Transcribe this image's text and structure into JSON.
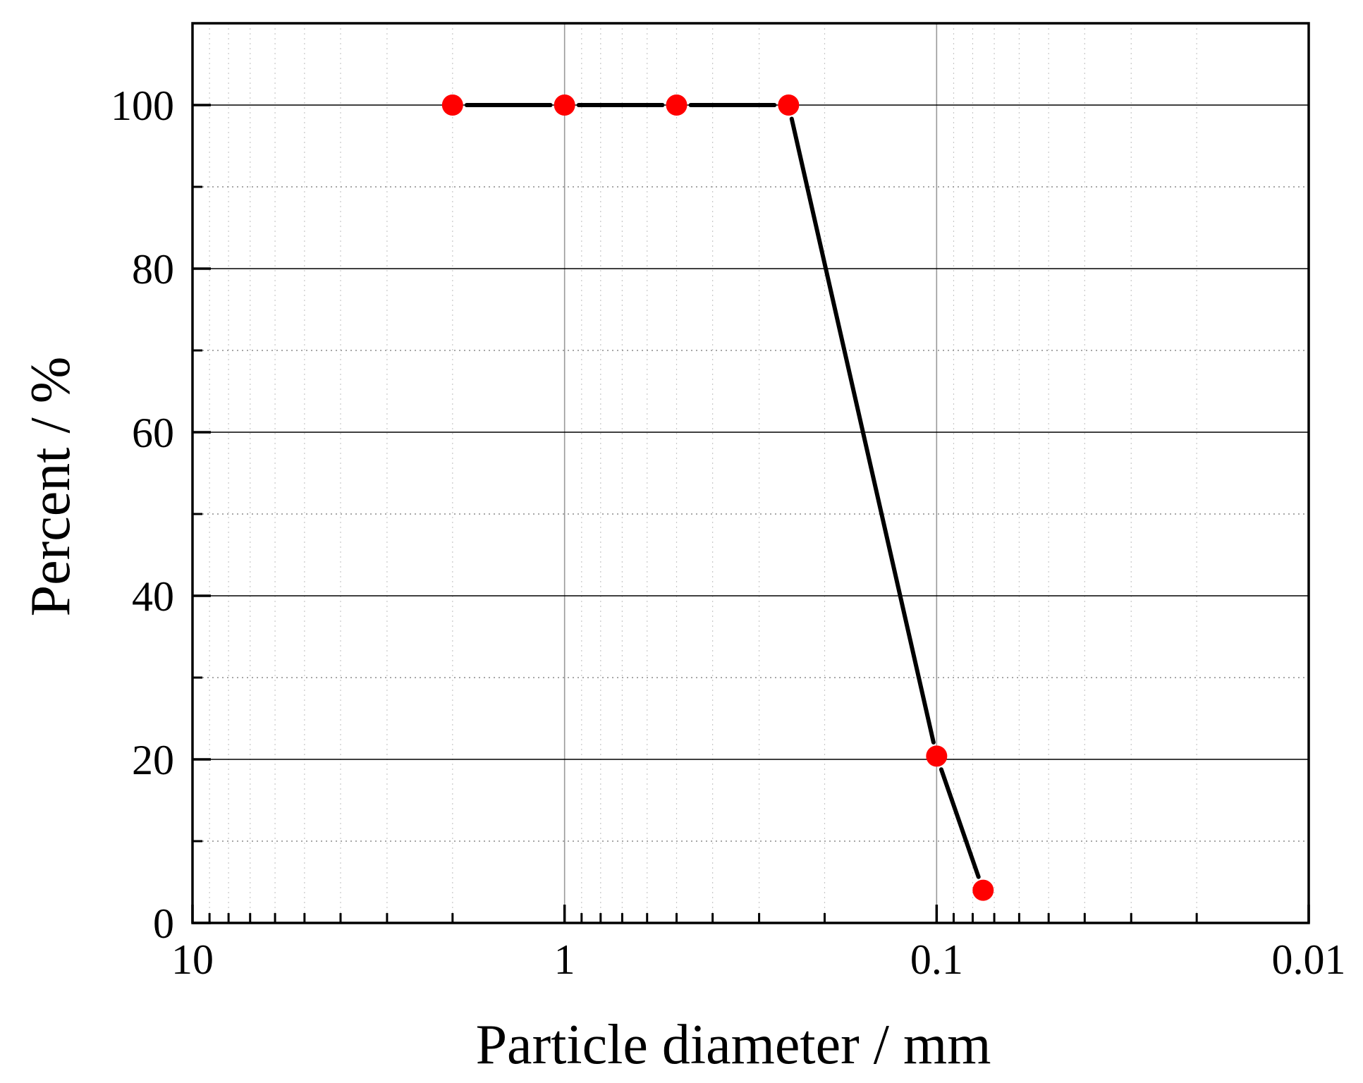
{
  "chart_data": {
    "type": "line",
    "xlabel": "Particle diameter  / mm",
    "ylabel": "Percent / %",
    "x_scale": "log",
    "x_reversed": true,
    "xlim": [
      10,
      0.01
    ],
    "ylim": [
      0,
      110
    ],
    "xticks": [
      {
        "value": 10,
        "label": "10"
      },
      {
        "value": 1,
        "label": "1"
      },
      {
        "value": 0.1,
        "label": "0.1"
      },
      {
        "value": 0.01,
        "label": "0.01"
      }
    ],
    "yticks": [
      {
        "value": 0,
        "label": "0"
      },
      {
        "value": 20,
        "label": "20"
      },
      {
        "value": 40,
        "label": "40"
      },
      {
        "value": 60,
        "label": "60"
      },
      {
        "value": 80,
        "label": "80"
      },
      {
        "value": 100,
        "label": "100"
      }
    ],
    "grid": true,
    "series": [
      {
        "x": [
          2,
          1,
          0.5,
          0.25,
          0.1,
          0.075
        ],
        "y": [
          100,
          100,
          100,
          100,
          20.4,
          4
        ],
        "line_color": "#000000",
        "marker_color": "#ff0000"
      }
    ]
  }
}
